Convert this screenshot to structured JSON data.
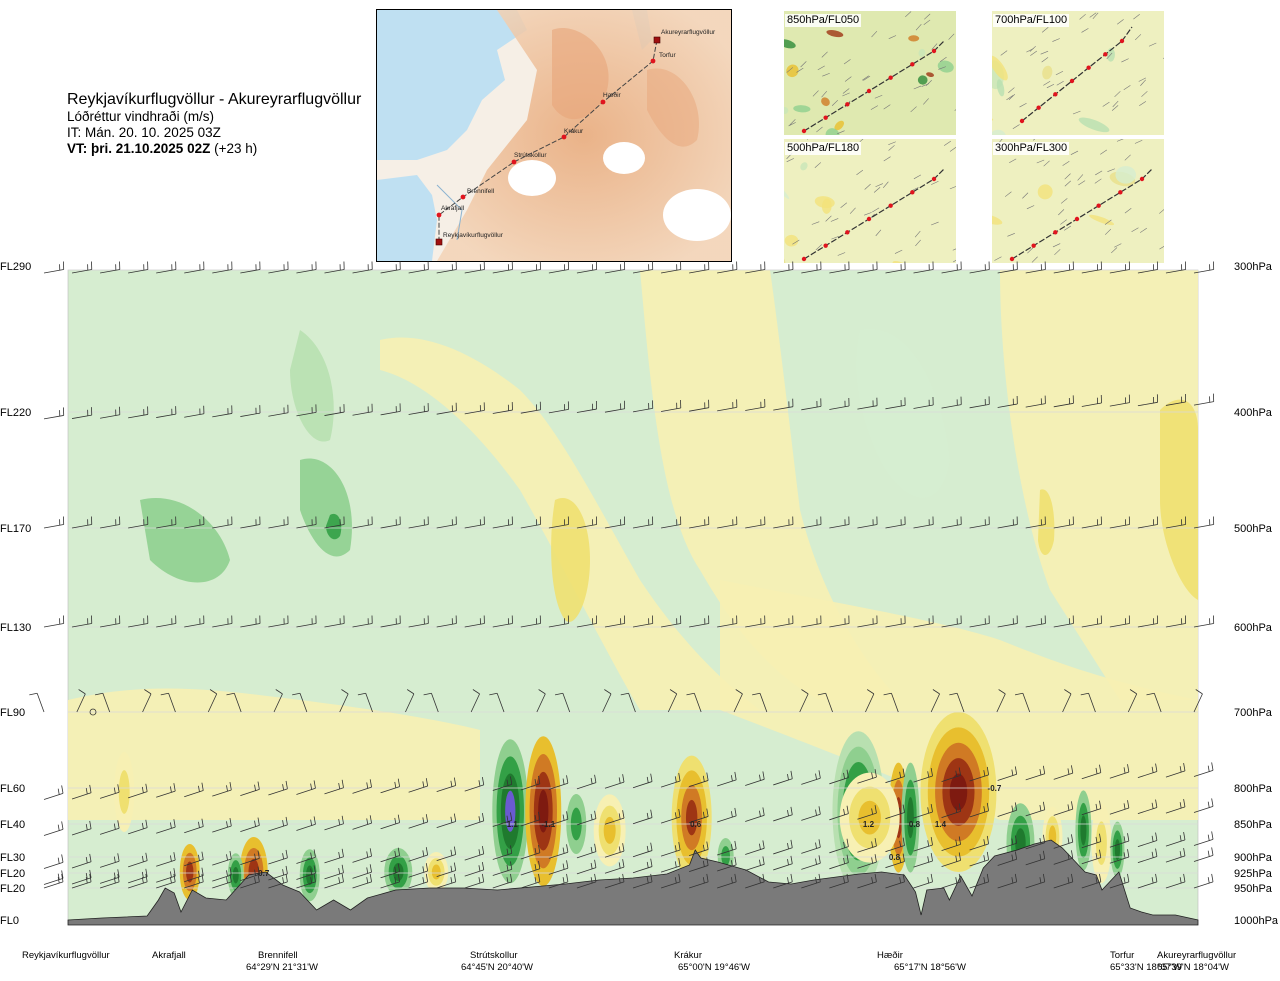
{
  "header": {
    "title": "Reykjavíkurflugvöllur - Akureyrarflugvöllur",
    "subtitle": "Lóðréttur vindhraði (m/s)",
    "issue_time": "IT: Mán. 20. 10. 2025 03Z",
    "valid_time": "VT: þri. 21.10.2025 02Z",
    "valid_offset": "(+23 h)"
  },
  "map": {
    "points": [
      {
        "label": "Akureyrarflugvöllur",
        "type": "airport"
      },
      {
        "label": "Torfur",
        "type": "waypoint"
      },
      {
        "label": "Hæðir",
        "type": "waypoint"
      },
      {
        "label": "Krákur",
        "type": "waypoint"
      },
      {
        "label": "Strútskollur",
        "type": "waypoint"
      },
      {
        "label": "Brennifell",
        "type": "waypoint"
      },
      {
        "label": "Akrafjall",
        "type": "waypoint"
      },
      {
        "label": "Reykjavíkurflugvöllur",
        "type": "airport"
      }
    ],
    "colors": {
      "sea": "#bfe0f2",
      "land_low": "#f6efe6",
      "land_high": "#eab48c",
      "glacier": "#ffffff",
      "route": "#444444",
      "point": "#e0141e",
      "airport": "#a01010"
    }
  },
  "level_panels": [
    {
      "label": "850hPa/FL050"
    },
    {
      "label": "700hPa/FL100"
    },
    {
      "label": "500hPa/FL180"
    },
    {
      "label": "300hPa/FL300"
    }
  ],
  "chart_data": {
    "type": "heatmap",
    "title": "Lóðréttur vindhraði (m/s)",
    "x_stations": [
      {
        "name": "Reykjavíkurflugvöllur",
        "coord": "",
        "frac": 0.0
      },
      {
        "name": "Akrafjall",
        "coord": "",
        "frac": 0.094
      },
      {
        "name": "Brennifell",
        "coord": "64°29'N 21°31'W",
        "frac": 0.198
      },
      {
        "name": "Strútskollur",
        "coord": "64°45'N 20°40'W",
        "frac": 0.379
      },
      {
        "name": "Krákur",
        "coord": "65°00'N 19°46'W",
        "frac": 0.559
      },
      {
        "name": "Hæðir",
        "coord": "65°17'N 18°56'W",
        "frac": 0.742
      },
      {
        "name": "Torfur",
        "coord": "65°33'N 18°07'W",
        "frac": 0.934
      },
      {
        "name": "Akureyrarflugvöllur",
        "coord": "65°39'N 18°04'W",
        "frac": 1.0
      }
    ],
    "y_levels_left": [
      "FL290",
      "FL220",
      "FL170",
      "FL130",
      "FL90",
      "FL60",
      "FL40",
      "FL30",
      "FL20",
      "FL20",
      "FL0"
    ],
    "y_levels_right": [
      "300hPa",
      "400hPa",
      "500hPa",
      "600hPa",
      "700hPa",
      "800hPa",
      "850hPa",
      "900hPa",
      "925hPa",
      "950hPa",
      "1000hPa"
    ],
    "pressure_levels_hpa": [
      300,
      400,
      500,
      600,
      700,
      800,
      850,
      900,
      925,
      950,
      1000
    ],
    "contour_labels": [
      {
        "text": "0.7",
        "station": "Brennifell",
        "hpa": 925
      },
      {
        "text": "1.1",
        "station": "Strútskollur",
        "hpa": 850
      },
      {
        "text": "-1.1",
        "station": "Strútskollur",
        "hpa": 850
      },
      {
        "text": "0.6",
        "station": "Krákur",
        "hpa": 850
      },
      {
        "text": "1.2",
        "station": "Hæðir",
        "hpa": 850
      },
      {
        "text": "0.8",
        "station": "Hæðir",
        "hpa": 900
      },
      {
        "text": "0.8",
        "station": "Hæðir",
        "hpa": 850
      },
      {
        "text": "1.4",
        "station": "Hæðir",
        "hpa": 850
      },
      {
        "text": "-0.7",
        "station": "Hæðir",
        "hpa": 800
      }
    ],
    "colors": {
      "up_strong": "#6a5ad0",
      "up_3": "#1f7a2e",
      "up_2": "#33a046",
      "up_1": "#8fcf8f",
      "up_weak": "#b8e0b0",
      "neutral_green": "#d6edd0",
      "down_weak": "#f7f0b3",
      "down_1": "#efe070",
      "down_2": "#e8bf2e",
      "down_3": "#d07a24",
      "down_4": "#9e3514",
      "down_strong": "#7e1a10",
      "terrain": "#7a7a7a",
      "barb": "#333333",
      "gridline": "#d8d8d8"
    }
  }
}
